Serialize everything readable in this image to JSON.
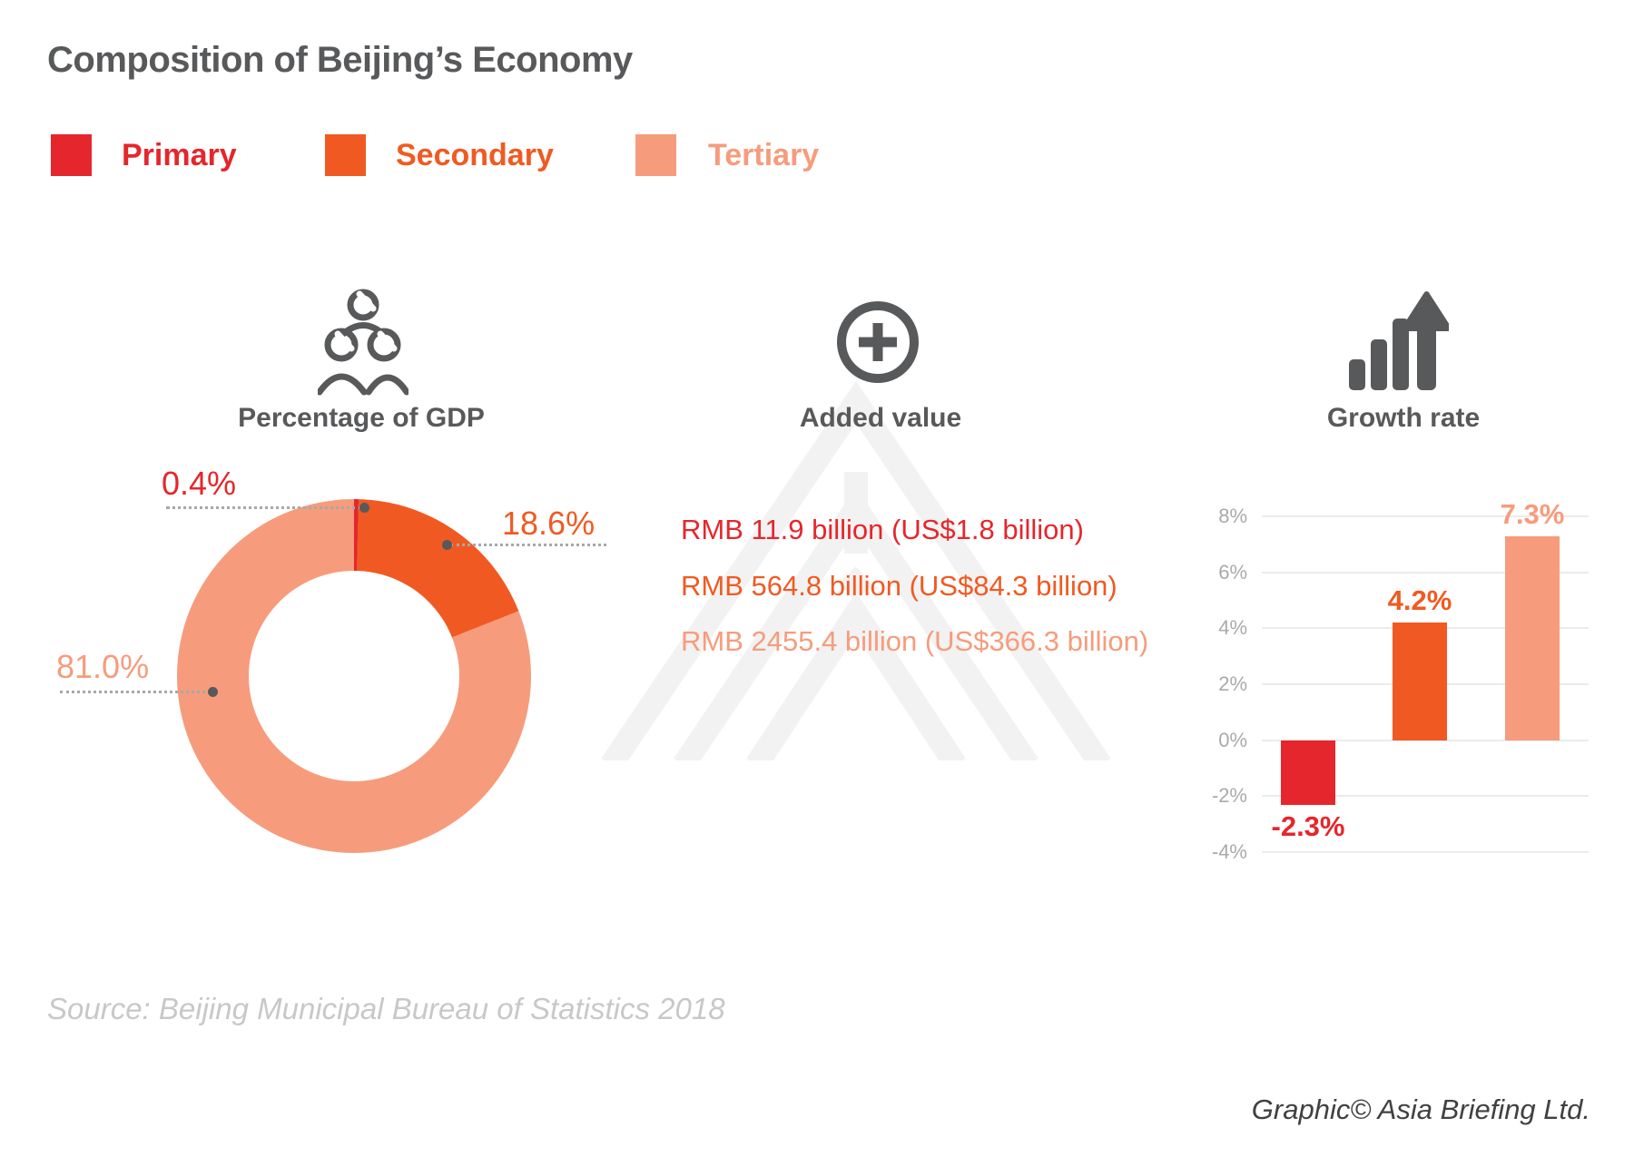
{
  "title": "Composition of Beijing’s Economy",
  "legend": {
    "items": [
      {
        "label": "Primary",
        "color": "#E5262C"
      },
      {
        "label": "Secondary",
        "color": "#F05A22"
      },
      {
        "label": "Tertiary",
        "color": "#F69C7C"
      }
    ]
  },
  "sections": {
    "gdp": {
      "heading": "Percentage of GDP",
      "icon": "people-group"
    },
    "added_value": {
      "heading": "Added value",
      "icon": "plus-circle",
      "items": [
        {
          "label": "RMB 11.9 billion (US$1.8 billion)",
          "category": "Primary"
        },
        {
          "label": "RMB 564.8 billion (US$84.3 billion)",
          "category": "Secondary"
        },
        {
          "label": "RMB 2455.4 billion (US$366.3 billion)",
          "category": "Tertiary"
        }
      ]
    },
    "growth": {
      "heading": "Growth rate",
      "icon": "rising-bars-arrow"
    }
  },
  "chart_data": [
    {
      "type": "pie",
      "subtype": "donut",
      "title": "Percentage of GDP",
      "categories": [
        "Primary",
        "Secondary",
        "Tertiary"
      ],
      "values": [
        0.4,
        18.6,
        81.0
      ],
      "labels": [
        "0.4%",
        "18.6%",
        "81.0%"
      ],
      "unit": "percent",
      "colors": [
        "#E5262C",
        "#F05A22",
        "#F69C7C"
      ],
      "start_angle": "12 o'clock",
      "direction": "clockwise",
      "legend_position": "top"
    },
    {
      "type": "bar",
      "title": "Growth rate",
      "categories": [
        "Primary",
        "Secondary",
        "Tertiary"
      ],
      "values": [
        -2.3,
        4.2,
        7.3
      ],
      "labels": [
        "-2.3%",
        "4.2%",
        "7.3%"
      ],
      "unit": "percent",
      "colors": [
        "#E5262C",
        "#F05A22",
        "#F69C7C"
      ],
      "ylim": [
        -4,
        8
      ],
      "yticks": [
        8,
        6,
        4,
        2,
        0,
        -2,
        -4
      ],
      "ytick_labels": [
        "8%",
        "6%",
        "4%",
        "2%",
        "0%",
        "-2%",
        "-4%"
      ],
      "grid": true,
      "legend_position": "none"
    }
  ],
  "footer": {
    "source": "Source: Beijing Municipal Bureau of Statistics 2018",
    "credit": "Graphic© Asia Briefing Ltd."
  },
  "colors": {
    "primary": "#E5262C",
    "secondary": "#F05A22",
    "tertiary": "#F69C7C",
    "heading": "#58595B",
    "tick": "#A8AAAD",
    "grid": "#EBEBEB",
    "dot": "#58595B",
    "leader": "#A6A8AB",
    "source": "#C7C8CA",
    "credit": "#414042",
    "watermark": "#F2F2F2"
  }
}
